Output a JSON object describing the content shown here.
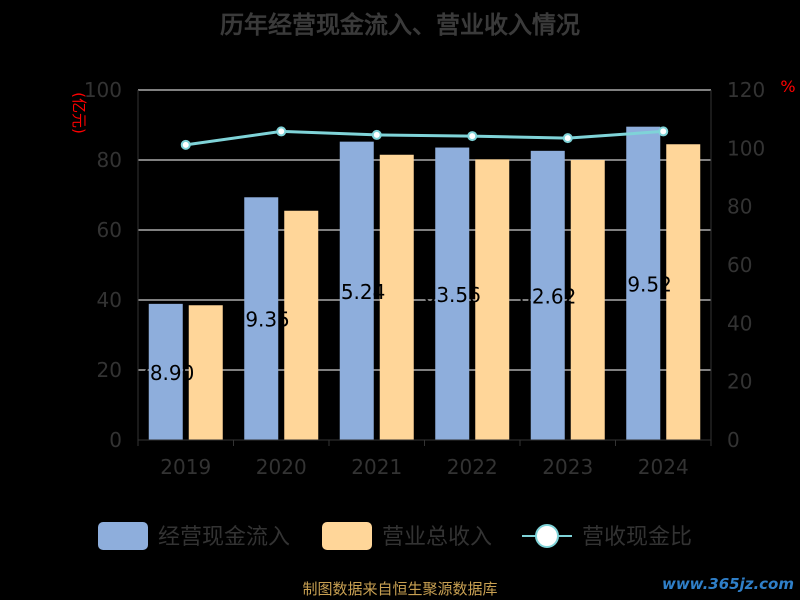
{
  "chart_data": {
    "type": "bar",
    "title": "历年经营现金流入、营业收入情况",
    "categories": [
      "2019",
      "2020",
      "2021",
      "2022",
      "2023",
      "2024"
    ],
    "ylabel_left": "(亿元)",
    "ylabel_right": "%",
    "ylim_left": [
      0,
      100
    ],
    "ylim_right": [
      0,
      120
    ],
    "yticks_left": [
      0,
      20,
      40,
      60,
      80,
      100
    ],
    "yticks_right": [
      0,
      20,
      40,
      60,
      80,
      100,
      120
    ],
    "series": [
      {
        "name": "经营现金流入",
        "kind": "bar",
        "axis": "left",
        "color": "#8eaedc",
        "values": [
          38.9,
          69.35,
          85.24,
          83.56,
          82.62,
          89.52
        ],
        "data_labels": [
          "38.90",
          "69.35",
          "85.24",
          "83.56",
          "82.62",
          "89.52"
        ]
      },
      {
        "name": "营业总收入",
        "kind": "bar",
        "axis": "left",
        "color": "#ffd699",
        "values": [
          38.5,
          65.5,
          81.5,
          80.2,
          80.0,
          84.5
        ]
      },
      {
        "name": "营收现金比",
        "kind": "line",
        "axis": "right",
        "color": "#7fd3d8",
        "values": [
          101.2,
          105.8,
          104.6,
          104.2,
          103.5,
          105.8
        ]
      }
    ],
    "grid": true,
    "legend_position": "bottom"
  },
  "footer": {
    "source": "制图数据来自恒生聚源数据库",
    "watermark": "www.365jz.com"
  }
}
